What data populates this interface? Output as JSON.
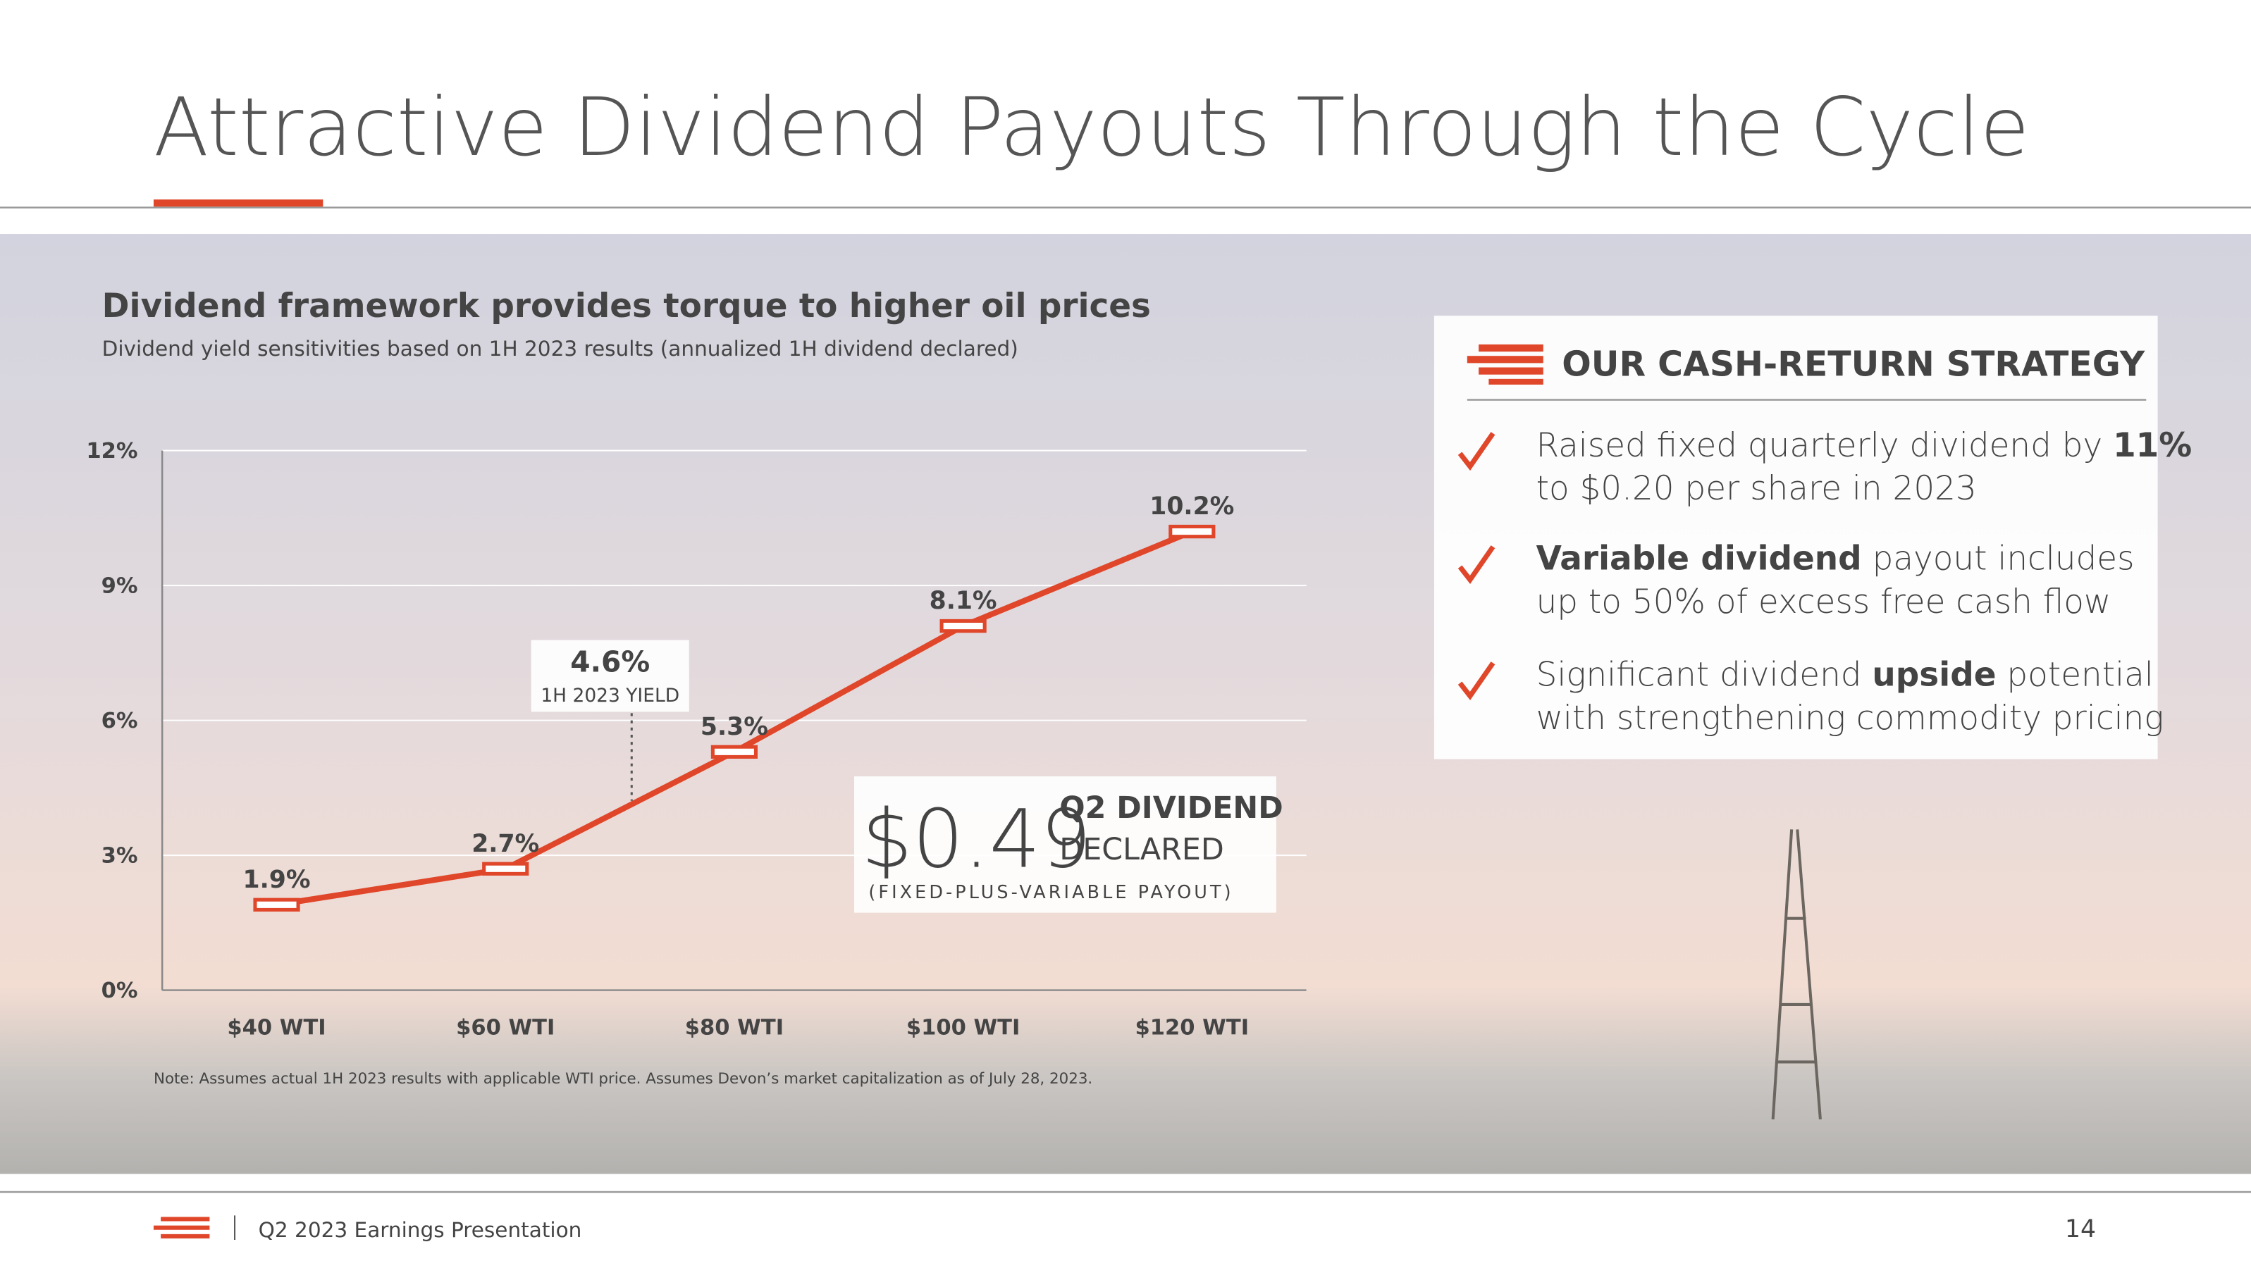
{
  "header": {
    "title": "Attractive Dividend Payouts Through the Cycle"
  },
  "chart_data": {
    "type": "line",
    "title": "Dividend framework provides torque to higher oil prices",
    "subtitle": "Dividend yield sensitivities based on 1H 2023 results (annualized 1H dividend declared)",
    "categories": [
      "$40 WTI",
      "$60 WTI",
      "$80 WTI",
      "$100 WTI",
      "$120 WTI"
    ],
    "values": [
      1.9,
      2.7,
      5.3,
      8.1,
      10.2
    ],
    "value_labels": [
      "1.9%",
      "2.7%",
      "5.3%",
      "8.1%",
      "10.2%"
    ],
    "color": "#e0472a",
    "ylim": [
      0,
      12
    ],
    "yticks": [
      {
        "value": 0,
        "label": "0%"
      },
      {
        "value": 3,
        "label": "3%"
      },
      {
        "value": 6,
        "label": "6%"
      },
      {
        "value": 9,
        "label": "9%"
      },
      {
        "value": 12,
        "label": "12%"
      }
    ],
    "grid": true,
    "annotation": {
      "value_label": "4.6%",
      "text": "1H 2023 YIELD"
    },
    "note": "Note: Assumes actual 1H 2023 results with applicable WTI price. Assumes Devon’s market capitalization as of July 28, 2023."
  },
  "dividend_callout": {
    "amount": "$0.49",
    "line1": "Q2 DIVIDEND",
    "line2": "DECLARED",
    "caption": "(FIXED-PLUS-VARIABLE PAYOUT)"
  },
  "strategy": {
    "heading": "OUR CASH-RETURN STRATEGY",
    "bullets": [
      [
        [
          {
            "text": "Raised fixed quarterly dividend by "
          },
          {
            "text": "11%",
            "bold": true
          }
        ],
        [
          {
            "text": "to $0.20 per share in 2023"
          }
        ]
      ],
      [
        [
          {
            "text": "Variable dividend",
            "bold": true
          },
          {
            "text": " payout includes"
          }
        ],
        [
          {
            "text": "up to 50% of excess free cash flow"
          }
        ]
      ],
      [
        [
          {
            "text": "Significant dividend "
          },
          {
            "text": "upside",
            "bold": true
          },
          {
            "text": " potential"
          }
        ],
        [
          {
            "text": "with strengthening commodity pricing"
          }
        ]
      ]
    ]
  },
  "footer": {
    "text": "Q2 2023 Earnings Presentation",
    "page": "14"
  }
}
